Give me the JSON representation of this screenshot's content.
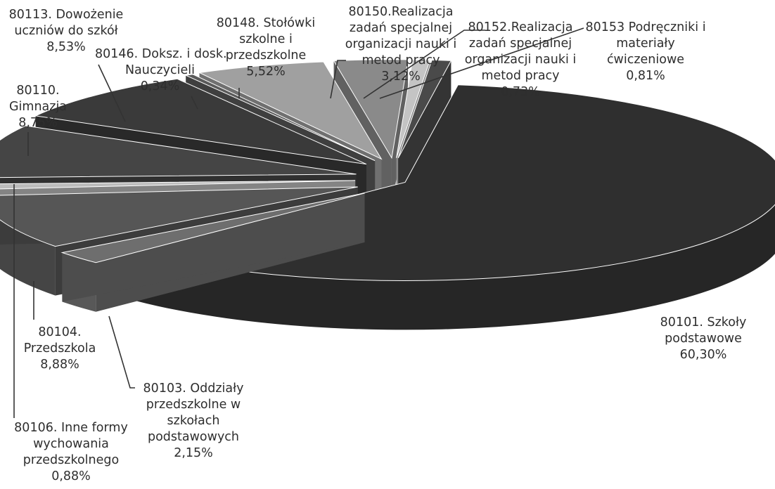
{
  "chart_data": {
    "type": "pie",
    "style": "3d-exploded",
    "title": "",
    "slices": [
      {
        "label": "80101. Szkoły podstawowe",
        "value": 60.3,
        "display": "60,30%",
        "color": "#2f2f2f"
      },
      {
        "label": "80103. Oddziały przedszkolne w szkołach podstawowych",
        "value": 2.15,
        "display": "2,15%",
        "color": "#6e6e6e"
      },
      {
        "label": "80104. Przedszkola",
        "value": 8.88,
        "display": "8,88%",
        "color": "#565656"
      },
      {
        "label": "80106. Inne formy wychowania przedszkolnego",
        "value": 0.88,
        "display": "0,88%",
        "color": "#bcbcbc"
      },
      {
        "label": "80110. Gimnazja",
        "value": 8.75,
        "display": "8,75%",
        "color": "#454545"
      },
      {
        "label": "80113. Dowożenie uczniów do szkół",
        "value": 8.53,
        "display": "8,53%",
        "color": "#3a3a3a"
      },
      {
        "label": "80146. Doksz. i dosk. Nauczycieli",
        "value": 0.34,
        "display": "0,34%",
        "color": "#5a5a5a"
      },
      {
        "label": "80148. Stołówki szkolne i przedszkolne",
        "value": 5.52,
        "display": "5,52%",
        "color": "#a0a0a0"
      },
      {
        "label": "80150.Realizacja zadań specjalnej organizacji nauki i metod pracy",
        "value": 3.12,
        "display": "3,12%",
        "color": "#8a8a8a"
      },
      {
        "label": "80152.Realizacja zadań specjalnej organizacji nauki i metod pracy",
        "value": 0.73,
        "display": "0,73%",
        "color": "#c4c4c4"
      },
      {
        "label": "80153 Podręczniki i materiały ćwiczeniowe",
        "value": 0.81,
        "display": "0,81%",
        "color": "#4a4a4a"
      }
    ]
  },
  "labels": {
    "s80101": {
      "l1": "80101. Szkoły",
      "l2": "podstawowe",
      "pct": "60,30%"
    },
    "s80103": {
      "l1": "80103. Oddziały",
      "l2": "przedszkolne w",
      "l3": "szkołach",
      "l4": "podstawowych",
      "pct": "2,15%"
    },
    "s80104": {
      "l1": "80104.",
      "l2": "Przedszkola",
      "pct": "8,88%"
    },
    "s80106": {
      "l1": "80106. Inne formy",
      "l2": "wychowania",
      "l3": "przedszkolnego",
      "pct": "0,88%"
    },
    "s80110": {
      "l1": "80110.",
      "l2": "Gimnazja",
      "pct": "8,75%"
    },
    "s80113": {
      "l1": "80113. Dowożenie",
      "l2": "uczniów do szkół",
      "pct": "8,53%"
    },
    "s80146": {
      "l1": "80146. Doksz. i dosk.",
      "l2": "Nauczycieli",
      "pct": "0,34%"
    },
    "s80148": {
      "l1": "80148. Stołówki",
      "l2": "szkolne i",
      "l3": "przedszkolne",
      "pct": "5,52%"
    },
    "s80150": {
      "l1": "80150.Realizacja",
      "l2": "zadań specjalnej",
      "l3": "organizacji nauki i",
      "l4": "metod pracy",
      "pct": "3,12%"
    },
    "s80152": {
      "l1": "80152.Realizacja",
      "l2": "zadań specjalnej",
      "l3": "organizacji nauki i",
      "l4": "metod pracy",
      "pct": "0,73%"
    },
    "s80153": {
      "l1": "80153 Podręczniki i",
      "l2": "materiały",
      "l3": "ćwiczeniowe",
      "pct": "0,81%"
    }
  }
}
